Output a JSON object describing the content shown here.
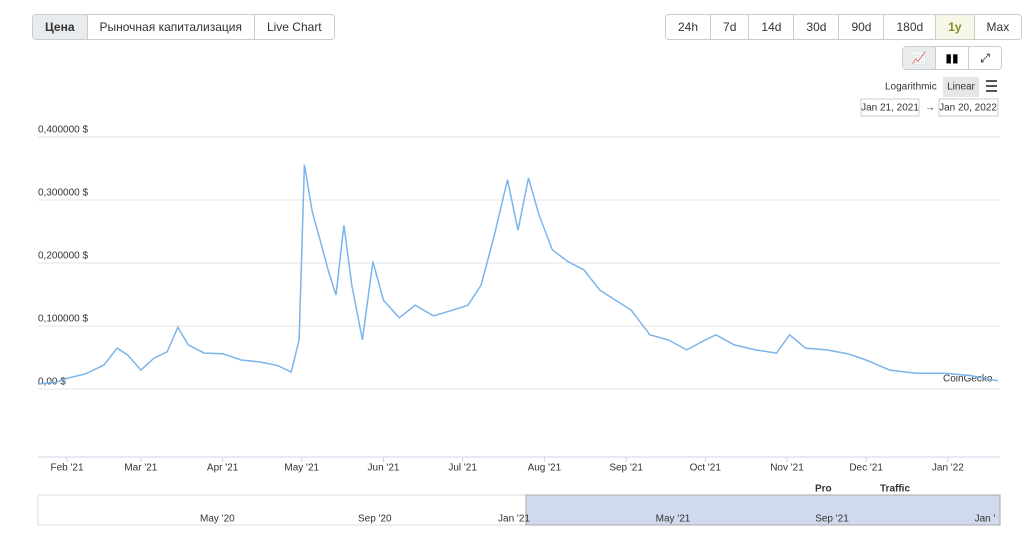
{
  "ui": {
    "tabs": [
      "Цена",
      "Рыночная капитализация",
      "Live Chart"
    ],
    "ranges": [
      "24h",
      "7d",
      "14d",
      "30d",
      "90d",
      "180d",
      "1y",
      "Max"
    ],
    "scale_options": [
      "Logarithmic",
      "Linear"
    ],
    "date_from": "Jan 21, 2021",
    "date_to": "Jan 20, 2022",
    "watermark": "CoinGecko",
    "logo": [
      "Pro",
      "Traffic"
    ],
    "navigator_labels": [
      "May '20",
      "Sep '20",
      "Jan '21",
      "May '21",
      "Sep '21",
      "Jan '"
    ]
  },
  "chart_data": {
    "type": "line",
    "x": [
      "2021-01-21",
      "2021-01-28",
      "2021-02-01",
      "2021-02-08",
      "2021-02-15",
      "2021-02-20",
      "2021-02-24",
      "2021-03-01",
      "2021-03-06",
      "2021-03-11",
      "2021-03-15",
      "2021-03-19",
      "2021-03-25",
      "2021-04-01",
      "2021-04-08",
      "2021-04-15",
      "2021-04-22",
      "2021-04-27",
      "2021-04-30",
      "2021-05-02",
      "2021-05-05",
      "2021-05-08",
      "2021-05-11",
      "2021-05-14",
      "2021-05-17",
      "2021-05-20",
      "2021-05-24",
      "2021-05-28",
      "2021-06-01",
      "2021-06-07",
      "2021-06-13",
      "2021-06-20",
      "2021-06-27",
      "2021-07-03",
      "2021-07-08",
      "2021-07-13",
      "2021-07-18",
      "2021-07-22",
      "2021-07-26",
      "2021-07-30",
      "2021-08-04",
      "2021-08-10",
      "2021-08-16",
      "2021-08-22",
      "2021-08-28",
      "2021-09-03",
      "2021-09-10",
      "2021-09-17",
      "2021-09-24",
      "2021-10-01",
      "2021-10-05",
      "2021-10-12",
      "2021-10-20",
      "2021-10-28",
      "2021-11-02",
      "2021-11-08",
      "2021-11-16",
      "2021-11-24",
      "2021-12-01",
      "2021-12-10",
      "2021-12-20",
      "2021-12-31",
      "2022-01-10",
      "2022-01-20"
    ],
    "values": [
      0.008,
      0.011,
      0.017,
      0.024,
      0.038,
      0.065,
      0.054,
      0.03,
      0.049,
      0.059,
      0.098,
      0.07,
      0.057,
      0.056,
      0.046,
      0.043,
      0.037,
      0.027,
      0.078,
      0.356,
      0.281,
      0.236,
      0.189,
      0.149,
      0.26,
      0.165,
      0.078,
      0.202,
      0.141,
      0.113,
      0.133,
      0.116,
      0.125,
      0.133,
      0.165,
      0.244,
      0.332,
      0.252,
      0.335,
      0.276,
      0.221,
      0.202,
      0.189,
      0.157,
      0.141,
      0.125,
      0.086,
      0.078,
      0.062,
      0.078,
      0.086,
      0.07,
      0.062,
      0.057,
      0.086,
      0.065,
      0.062,
      0.056,
      0.046,
      0.03,
      0.025,
      0.025,
      0.021,
      0.013
    ],
    "color": "#7cb5ec",
    "xlim": [
      "2021-01-21",
      "2022-01-20"
    ],
    "xticks": [
      {
        "value": "2021-02-01",
        "label": "Feb '21"
      },
      {
        "value": "2021-03-01",
        "label": "Mar '21"
      },
      {
        "value": "2021-04-01",
        "label": "Apr '21"
      },
      {
        "value": "2021-05-01",
        "label": "May '21"
      },
      {
        "value": "2021-06-01",
        "label": "Jun '21"
      },
      {
        "value": "2021-07-01",
        "label": "Jul '21"
      },
      {
        "value": "2021-08-01",
        "label": "Aug '21"
      },
      {
        "value": "2021-09-01",
        "label": "Sep '21"
      },
      {
        "value": "2021-10-01",
        "label": "Oct '21"
      },
      {
        "value": "2021-11-01",
        "label": "Nov '21"
      },
      {
        "value": "2021-12-01",
        "label": "Dec '21"
      },
      {
        "value": "2022-01-01",
        "label": "Jan '22"
      }
    ],
    "ylim": [
      0,
      0.4
    ],
    "yticks": [
      {
        "value": 0,
        "label": "0,00 $"
      },
      {
        "value": 0.1,
        "label": "0,100000 $"
      },
      {
        "value": 0.2,
        "label": "0,200000 $"
      },
      {
        "value": 0.3,
        "label": "0,300000 $"
      },
      {
        "value": 0.4,
        "label": "0,400000 $"
      }
    ],
    "grid": true
  }
}
